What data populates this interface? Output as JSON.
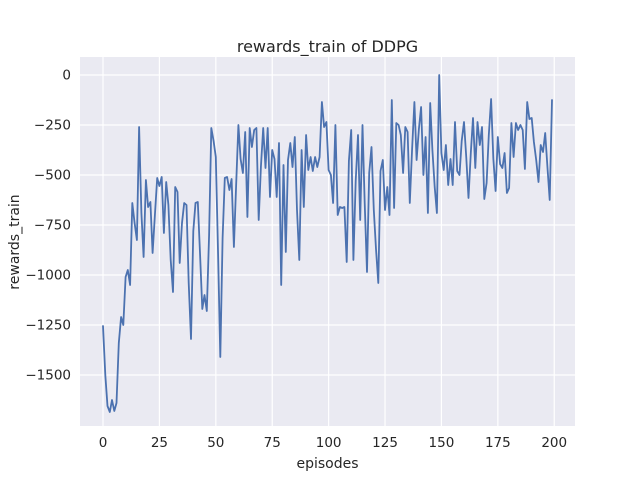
{
  "chart_data": {
    "type": "line",
    "title": "rewards_train of DDPG",
    "xlabel": "episodes",
    "ylabel": "rewards_train",
    "grid": true,
    "legend": "none",
    "xlim": [
      -10.2,
      209.2
    ],
    "ylim": [
      -1755,
      90
    ],
    "x_ticks": [
      {
        "v": 0,
        "label": "0"
      },
      {
        "v": 25,
        "label": "25"
      },
      {
        "v": 50,
        "label": "50"
      },
      {
        "v": 75,
        "label": "75"
      },
      {
        "v": 100,
        "label": "100"
      },
      {
        "v": 125,
        "label": "125"
      },
      {
        "v": 150,
        "label": "150"
      },
      {
        "v": 175,
        "label": "175"
      },
      {
        "v": 200,
        "label": "200"
      }
    ],
    "y_ticks": [
      {
        "v": 0,
        "label": "0"
      },
      {
        "v": -250,
        "label": "−250"
      },
      {
        "v": -500,
        "label": "−500"
      },
      {
        "v": -750,
        "label": "−750"
      },
      {
        "v": -1000,
        "label": "−1000"
      },
      {
        "v": -1250,
        "label": "−1250"
      },
      {
        "v": -1500,
        "label": "−1500"
      }
    ],
    "colors": {
      "figure_bg": "#ffffff",
      "axes_bg": "#eaeaf2",
      "grid": "#ffffff",
      "text": "#262626",
      "line": "#4c72b0"
    },
    "series": [
      {
        "name": "rewards_train",
        "color": "#4c72b0",
        "x_start": 0,
        "x_step": 1,
        "values": [
          -1255,
          -1500,
          -1655,
          -1685,
          -1625,
          -1680,
          -1640,
          -1340,
          -1210,
          -1250,
          -1010,
          -975,
          -1050,
          -640,
          -740,
          -825,
          -260,
          -690,
          -910,
          -525,
          -660,
          -635,
          -890,
          -700,
          -515,
          -555,
          -510,
          -790,
          -535,
          -650,
          -925,
          -1085,
          -560,
          -585,
          -940,
          -740,
          -640,
          -650,
          -1040,
          -1320,
          -780,
          -640,
          -635,
          -890,
          -1170,
          -1100,
          -1180,
          -800,
          -265,
          -330,
          -410,
          -900,
          -1410,
          -815,
          -515,
          -510,
          -575,
          -520,
          -860,
          -555,
          -250,
          -420,
          -490,
          -285,
          -710,
          -265,
          -360,
          -275,
          -265,
          -725,
          -460,
          -265,
          -465,
          -265,
          -610,
          -375,
          -420,
          -610,
          -340,
          -1050,
          -450,
          -885,
          -425,
          -340,
          -460,
          -310,
          -675,
          -925,
          -375,
          -660,
          -300,
          -475,
          -410,
          -480,
          -410,
          -460,
          -410,
          -135,
          -260,
          -235,
          -475,
          -500,
          -640,
          -250,
          -700,
          -660,
          -665,
          -660,
          -935,
          -430,
          -275,
          -925,
          -530,
          -300,
          -725,
          -250,
          -640,
          -985,
          -490,
          -360,
          -675,
          -870,
          -1040,
          -480,
          -425,
          -675,
          -560,
          -700,
          -125,
          -665,
          -240,
          -250,
          -300,
          -490,
          -260,
          -285,
          -640,
          -370,
          -135,
          -425,
          -270,
          -160,
          -500,
          -310,
          -690,
          -140,
          -375,
          -560,
          -690,
          0,
          -390,
          -475,
          -350,
          -550,
          -420,
          -550,
          -235,
          -480,
          -500,
          -330,
          -235,
          -415,
          -615,
          -390,
          -215,
          -465,
          -235,
          -350,
          -260,
          -620,
          -540,
          -300,
          -120,
          -415,
          -580,
          -310,
          -445,
          -465,
          -390,
          -590,
          -565,
          -240,
          -410,
          -240,
          -275,
          -250,
          -275,
          -470,
          -135,
          -220,
          -215,
          -335,
          -425,
          -535,
          -350,
          -385,
          -290,
          -465,
          -625,
          -125
        ]
      }
    ]
  }
}
